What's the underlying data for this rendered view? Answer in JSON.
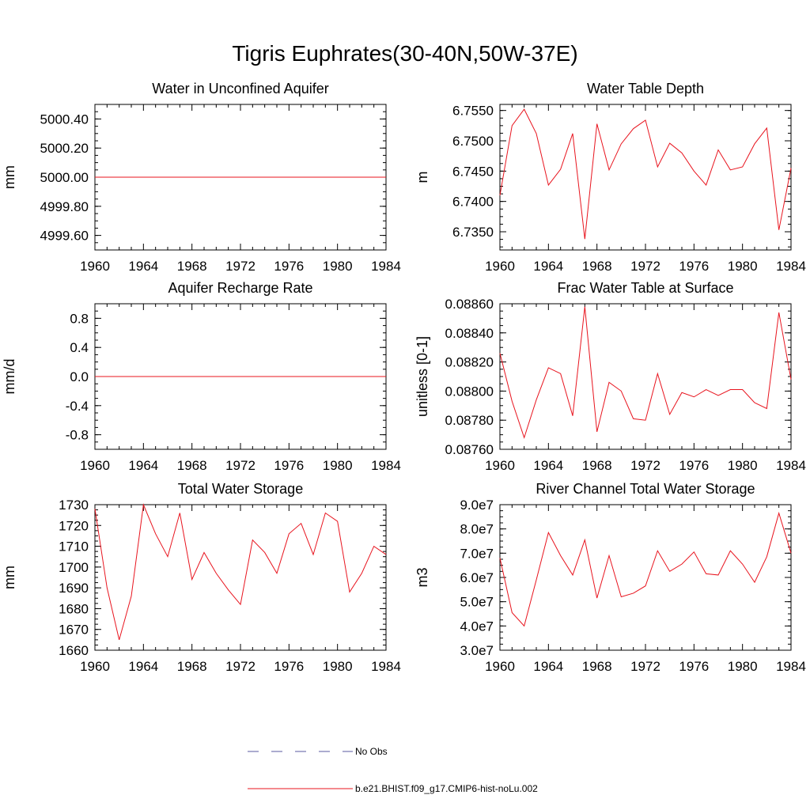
{
  "title": "Tigris Euphrates(30-40N,50W-37E)",
  "colors": {
    "model": "#e8141e",
    "obs": "#5a5aa0",
    "axis": "#000000"
  },
  "legend": [
    {
      "label": "No Obs",
      "style": "dashed",
      "color": "#5a5aa0"
    },
    {
      "label": "b.e21.BHIST.f09_g17.CMIP6-hist-noLu.002",
      "style": "solid",
      "color": "#e8141e"
    }
  ],
  "chart_data": [
    {
      "type": "line",
      "title": "Water in Unconfined Aquifer",
      "ylabel": "mm",
      "xlim": [
        1960,
        1984
      ],
      "ylim": [
        4999.5,
        5000.5
      ],
      "xticks": [
        1960,
        1964,
        1968,
        1972,
        1976,
        1980,
        1984
      ],
      "yticks": [
        4999.6,
        4999.8,
        5000.0,
        5000.2,
        5000.4
      ],
      "ytick_labels": [
        "4999.60",
        "4999.80",
        "5000.00",
        "5000.20",
        "5000.40"
      ],
      "x": [
        1960,
        1961,
        1962,
        1963,
        1964,
        1965,
        1966,
        1967,
        1968,
        1969,
        1970,
        1971,
        1972,
        1973,
        1974,
        1975,
        1976,
        1977,
        1978,
        1979,
        1980,
        1981,
        1982,
        1983,
        1984
      ],
      "series": [
        {
          "name": "b.e21.BHIST.f09_g17.CMIP6-hist-noLu.002",
          "values": [
            5000,
            5000,
            5000,
            5000,
            5000,
            5000,
            5000,
            5000,
            5000,
            5000,
            5000,
            5000,
            5000,
            5000,
            5000,
            5000,
            5000,
            5000,
            5000,
            5000,
            5000,
            5000,
            5000,
            5000,
            5000
          ]
        }
      ]
    },
    {
      "type": "line",
      "title": "Water Table Depth",
      "ylabel": "m",
      "xlim": [
        1960,
        1984
      ],
      "ylim": [
        6.732,
        6.756
      ],
      "xticks": [
        1960,
        1964,
        1968,
        1972,
        1976,
        1980,
        1984
      ],
      "yticks": [
        6.735,
        6.74,
        6.745,
        6.75,
        6.755
      ],
      "ytick_labels": [
        "6.7350",
        "6.7400",
        "6.7450",
        "6.7500",
        "6.7550"
      ],
      "x": [
        1960,
        1961,
        1962,
        1963,
        1964,
        1965,
        1966,
        1967,
        1968,
        1969,
        1970,
        1971,
        1972,
        1973,
        1974,
        1975,
        1976,
        1977,
        1978,
        1979,
        1980,
        1981,
        1982,
        1983,
        1984
      ],
      "series": [
        {
          "name": "b.e21.BHIST.f09_g17.CMIP6-hist-noLu.002",
          "values": [
            6.741,
            6.7525,
            6.7552,
            6.7512,
            6.7427,
            6.7453,
            6.7512,
            6.7338,
            6.7528,
            6.7452,
            6.7495,
            6.752,
            6.7534,
            6.7457,
            6.7496,
            6.748,
            6.745,
            6.7427,
            6.7485,
            6.7452,
            6.7457,
            6.7495,
            6.7521,
            6.7353,
            6.7455
          ]
        }
      ]
    },
    {
      "type": "line",
      "title": "Aquifer Recharge Rate",
      "ylabel": "mm/d",
      "xlim": [
        1960,
        1984
      ],
      "ylim": [
        -1.0,
        1.0
      ],
      "xticks": [
        1960,
        1964,
        1968,
        1972,
        1976,
        1980,
        1984
      ],
      "yticks": [
        -0.8,
        -0.4,
        0.0,
        0.4,
        0.8
      ],
      "ytick_labels": [
        "-0.8",
        "-0.4",
        "0.0",
        "0.4",
        "0.8"
      ],
      "x": [
        1960,
        1961,
        1962,
        1963,
        1964,
        1965,
        1966,
        1967,
        1968,
        1969,
        1970,
        1971,
        1972,
        1973,
        1974,
        1975,
        1976,
        1977,
        1978,
        1979,
        1980,
        1981,
        1982,
        1983,
        1984
      ],
      "series": [
        {
          "name": "b.e21.BHIST.f09_g17.CMIP6-hist-noLu.002",
          "values": [
            0,
            0,
            0,
            0,
            0,
            0,
            0,
            0,
            0,
            0,
            0,
            0,
            0,
            0,
            0,
            0,
            0,
            0,
            0,
            0,
            0,
            0,
            0,
            0,
            0
          ]
        }
      ]
    },
    {
      "type": "line",
      "title": "Frac Water Table at Surface",
      "ylabel": "unitless [0-1]",
      "xlim": [
        1960,
        1984
      ],
      "ylim": [
        0.0876,
        0.0886
      ],
      "xticks": [
        1960,
        1964,
        1968,
        1972,
        1976,
        1980,
        1984
      ],
      "yticks": [
        0.0876,
        0.0878,
        0.088,
        0.0882,
        0.0884,
        0.0886
      ],
      "ytick_labels": [
        "0.08760",
        "0.08780",
        "0.08800",
        "0.08820",
        "0.08840",
        "0.08860"
      ],
      "x": [
        1960,
        1961,
        1962,
        1963,
        1964,
        1965,
        1966,
        1967,
        1968,
        1969,
        1970,
        1971,
        1972,
        1973,
        1974,
        1975,
        1976,
        1977,
        1978,
        1979,
        1980,
        1981,
        1982,
        1983,
        1984
      ],
      "series": [
        {
          "name": "b.e21.BHIST.f09_g17.CMIP6-hist-noLu.002",
          "values": [
            0.08826,
            0.08793,
            0.08768,
            0.08794,
            0.08816,
            0.08812,
            0.08783,
            0.08858,
            0.08772,
            0.08806,
            0.088,
            0.08781,
            0.0878,
            0.08812,
            0.08784,
            0.08799,
            0.08796,
            0.08801,
            0.08797,
            0.08801,
            0.08801,
            0.08792,
            0.08788,
            0.08854,
            0.08808
          ]
        }
      ]
    },
    {
      "type": "line",
      "title": "Total Water Storage",
      "ylabel": "mm",
      "xlim": [
        1960,
        1984
      ],
      "ylim": [
        1660,
        1730
      ],
      "xticks": [
        1960,
        1964,
        1968,
        1972,
        1976,
        1980,
        1984
      ],
      "yticks": [
        1660,
        1670,
        1680,
        1690,
        1700,
        1710,
        1720,
        1730
      ],
      "ytick_labels": [
        "1660",
        "1670",
        "1680",
        "1690",
        "1700",
        "1710",
        "1720",
        "1730"
      ],
      "x": [
        1960,
        1961,
        1962,
        1963,
        1964,
        1965,
        1966,
        1967,
        1968,
        1969,
        1970,
        1971,
        1972,
        1973,
        1974,
        1975,
        1976,
        1977,
        1978,
        1979,
        1980,
        1981,
        1982,
        1983,
        1984
      ],
      "series": [
        {
          "name": "b.e21.BHIST.f09_g17.CMIP6-hist-noLu.002",
          "values": [
            1728,
            1690,
            1665,
            1686,
            1730,
            1716,
            1705,
            1726,
            1694,
            1707,
            1697,
            1689,
            1682,
            1713,
            1707,
            1697,
            1716,
            1721,
            1706,
            1726,
            1722,
            1688,
            1697,
            1710,
            1706
          ]
        }
      ]
    },
    {
      "type": "line",
      "title": "River Channel Total Water Storage",
      "ylabel": "m3",
      "xlim": [
        1960,
        1984
      ],
      "ylim": [
        30000000,
        90000000
      ],
      "xticks": [
        1960,
        1964,
        1968,
        1972,
        1976,
        1980,
        1984
      ],
      "yticks": [
        30000000,
        40000000,
        50000000,
        60000000,
        70000000,
        80000000,
        90000000
      ],
      "ytick_labels": [
        "3.0e7",
        "4.0e7",
        "5.0e7",
        "6.0e7",
        "7.0e7",
        "8.0e7",
        "9.0e7"
      ],
      "x": [
        1960,
        1961,
        1962,
        1963,
        1964,
        1965,
        1966,
        1967,
        1968,
        1969,
        1970,
        1971,
        1972,
        1973,
        1974,
        1975,
        1976,
        1977,
        1978,
        1979,
        1980,
        1981,
        1982,
        1983,
        1984
      ],
      "series": [
        {
          "name": "b.e21.BHIST.f09_g17.CMIP6-hist-noLu.002",
          "values": [
            68000000,
            45500000,
            40000000,
            59000000,
            78500000,
            69000000,
            61000000,
            75500000,
            51500000,
            69000000,
            52000000,
            53500000,
            56500000,
            71000000,
            62500000,
            65500000,
            70500000,
            61500000,
            61000000,
            71000000,
            65500000,
            58000000,
            68500000,
            86500000,
            70000000
          ]
        }
      ]
    }
  ]
}
